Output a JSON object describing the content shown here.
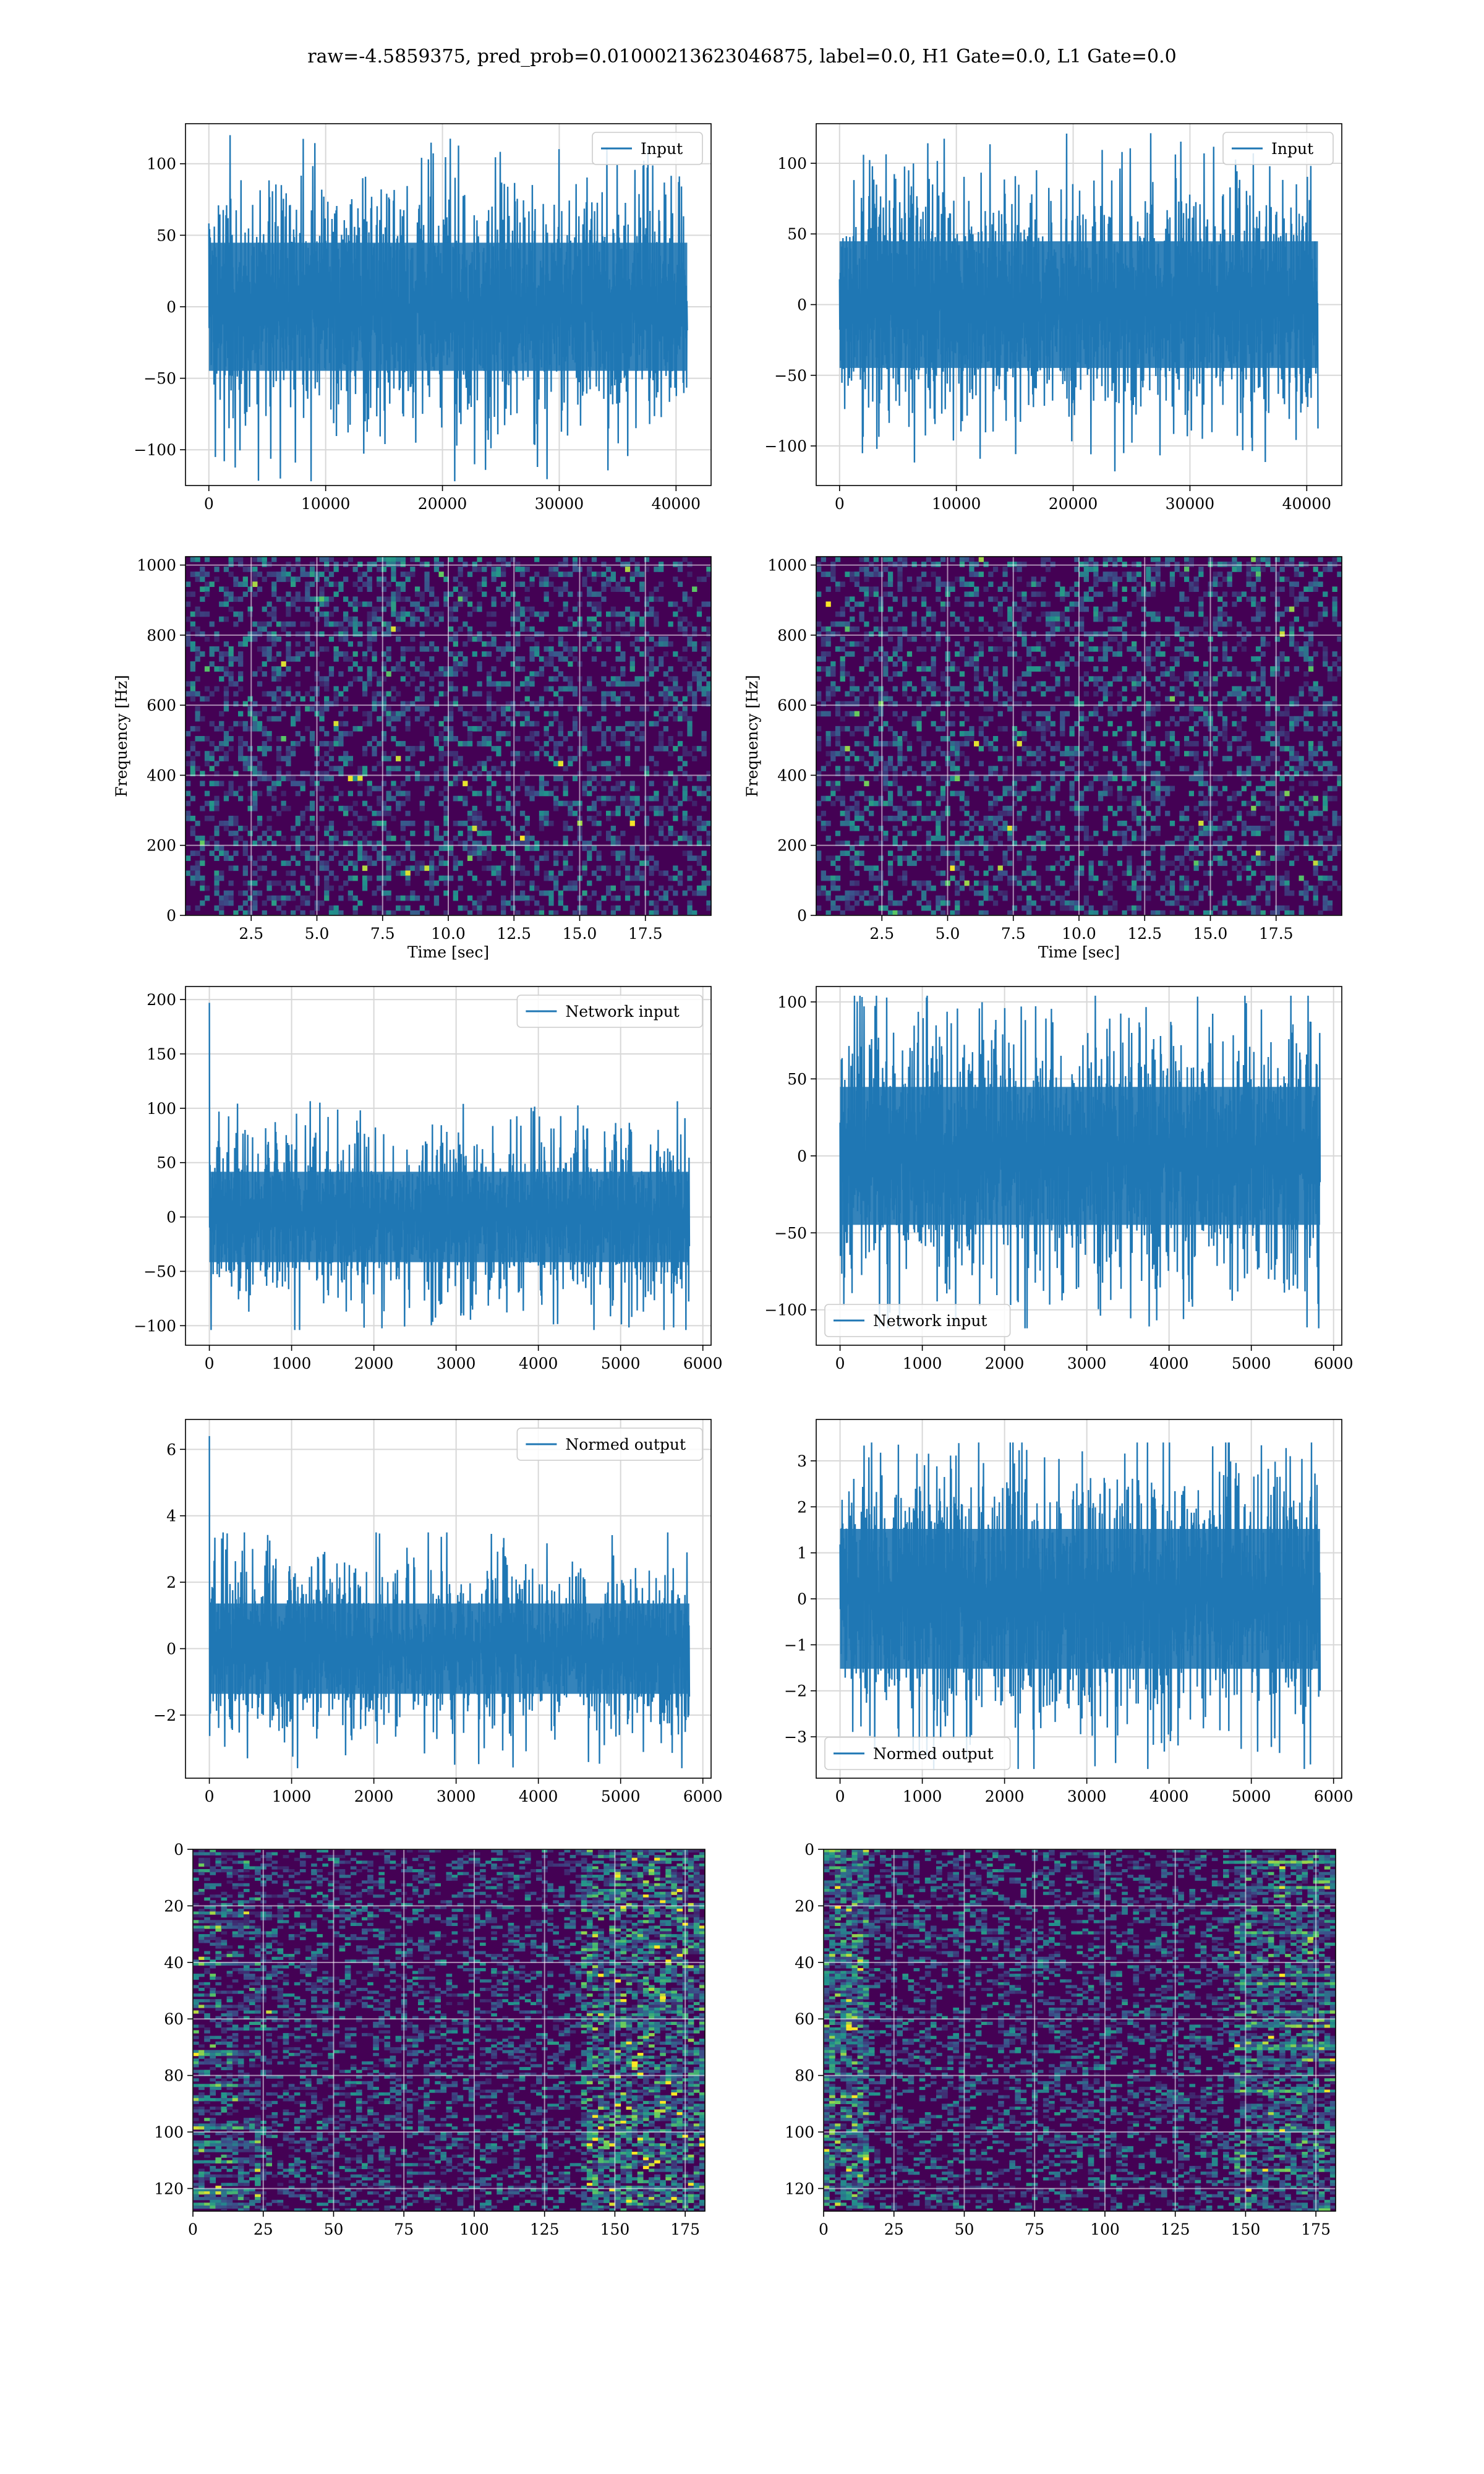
{
  "figure_title": "raw=-4.5859375, pred_prob=0.01000213623046875, label=0.0, H1 Gate=0.0, L1 Gate=0.0",
  "colors": {
    "series": "#1f77b4",
    "grid": "#d8d8d8",
    "viridis_low": "#440154",
    "viridis_mid": "#21918c",
    "viridis_high": "#fde725"
  },
  "chart_data": [
    {
      "id": "r1c1",
      "type": "line",
      "title": "",
      "xlabel": "",
      "ylabel": "",
      "xlim": [
        -2000,
        43000
      ],
      "ylim": [
        -125,
        128
      ],
      "xticks": [
        0,
        10000,
        20000,
        30000,
        40000
      ],
      "yticks": [
        -100,
        -50,
        0,
        50,
        100
      ],
      "series": [
        {
          "name": "Input",
          "color": "#1f77b4",
          "x_range": [
            0,
            40960
          ],
          "num_points": 40960,
          "center": 0,
          "std": 28,
          "max": 120,
          "min": -122
        }
      ],
      "legend": "upper-right",
      "grid": true
    },
    {
      "id": "r1c2",
      "type": "line",
      "title": "",
      "xlabel": "",
      "ylabel": "",
      "xlim": [
        -2000,
        43000
      ],
      "ylim": [
        -128,
        128
      ],
      "xticks": [
        0,
        10000,
        20000,
        30000,
        40000
      ],
      "yticks": [
        -100,
        -50,
        0,
        50,
        100
      ],
      "series": [
        {
          "name": "Input",
          "color": "#1f77b4",
          "x_range": [
            0,
            40960
          ],
          "num_points": 40960,
          "center": 0,
          "std": 28,
          "max": 123,
          "min": -118
        }
      ],
      "legend": "upper-right",
      "grid": true
    },
    {
      "id": "r2c1",
      "type": "heatmap",
      "title": "",
      "xlabel": "Time [sec]",
      "ylabel": "Frequency [Hz]",
      "xlim": [
        0,
        20
      ],
      "ylim": [
        0,
        1024
      ],
      "xticks": [
        2.5,
        5.0,
        7.5,
        10.0,
        12.5,
        15.0,
        17.5
      ],
      "xtick_labels": [
        "2.5",
        "5.0",
        "7.5",
        "10.0",
        "12.5",
        "15.0",
        "17.5"
      ],
      "yticks": [
        0,
        200,
        400,
        600,
        800,
        1000
      ],
      "colormap": "viridis",
      "grid": true
    },
    {
      "id": "r2c2",
      "type": "heatmap",
      "title": "",
      "xlabel": "Time [sec]",
      "ylabel": "Frequency [Hz]",
      "xlim": [
        0,
        20
      ],
      "ylim": [
        0,
        1024
      ],
      "xticks": [
        2.5,
        5.0,
        7.5,
        10.0,
        12.5,
        15.0,
        17.5
      ],
      "xtick_labels": [
        "2.5",
        "5.0",
        "7.5",
        "10.0",
        "12.5",
        "15.0",
        "17.5"
      ],
      "yticks": [
        0,
        200,
        400,
        600,
        800,
        1000
      ],
      "colormap": "viridis",
      "grid": true
    },
    {
      "id": "r3c1",
      "type": "line",
      "title": "",
      "xlabel": "",
      "ylabel": "",
      "xlim": [
        -290,
        6100
      ],
      "ylim": [
        -118,
        212
      ],
      "xticks": [
        0,
        1000,
        2000,
        3000,
        4000,
        5000,
        6000
      ],
      "yticks": [
        -100,
        -50,
        0,
        50,
        100,
        150,
        200
      ],
      "series": [
        {
          "name": "Network input",
          "color": "#1f77b4",
          "x_range": [
            0,
            5836
          ],
          "num_points": 5837,
          "center": 0,
          "std": 26,
          "max": 108,
          "min": -104,
          "spike_x": 0,
          "spike_y": 197
        }
      ],
      "legend": "upper-right",
      "grid": true
    },
    {
      "id": "r3c2",
      "type": "line",
      "title": "",
      "xlabel": "",
      "ylabel": "",
      "xlim": [
        -290,
        6100
      ],
      "ylim": [
        -123,
        110
      ],
      "xticks": [
        0,
        1000,
        2000,
        3000,
        4000,
        5000,
        6000
      ],
      "yticks": [
        -100,
        -50,
        0,
        50,
        100
      ],
      "series": [
        {
          "name": "Network input",
          "color": "#1f77b4",
          "x_range": [
            0,
            5836
          ],
          "num_points": 5837,
          "center": 0,
          "std": 28,
          "max": 104,
          "min": -112
        }
      ],
      "legend": "lower-left",
      "grid": true
    },
    {
      "id": "r4c1",
      "type": "line",
      "title": "",
      "xlabel": "",
      "ylabel": "",
      "xlim": [
        -290,
        6100
      ],
      "ylim": [
        -3.9,
        6.9
      ],
      "xticks": [
        0,
        1000,
        2000,
        3000,
        4000,
        5000,
        6000
      ],
      "yticks": [
        -2,
        0,
        2,
        4,
        6
      ],
      "series": [
        {
          "name": "Normed output",
          "color": "#1f77b4",
          "x_range": [
            0,
            5836
          ],
          "num_points": 5837,
          "center": 0,
          "std": 0.85,
          "max": 3.5,
          "min": -3.6,
          "spike_x": 0,
          "spike_y": 6.4
        }
      ],
      "legend": "upper-right",
      "grid": true
    },
    {
      "id": "r4c2",
      "type": "line",
      "title": "",
      "xlabel": "",
      "ylabel": "",
      "xlim": [
        -290,
        6100
      ],
      "ylim": [
        -3.9,
        3.9
      ],
      "xticks": [
        0,
        1000,
        2000,
        3000,
        4000,
        5000,
        6000
      ],
      "yticks": [
        -3,
        -2,
        -1,
        0,
        1,
        2,
        3
      ],
      "series": [
        {
          "name": "Normed output",
          "color": "#1f77b4",
          "x_range": [
            0,
            5836
          ],
          "num_points": 5837,
          "center": 0,
          "std": 0.95,
          "max": 3.4,
          "min": -3.7
        }
      ],
      "legend": "lower-left",
      "grid": true
    },
    {
      "id": "r5c1",
      "type": "heatmap",
      "title": "",
      "xlabel": "",
      "ylabel": "",
      "xlim": [
        0,
        182
      ],
      "ylim": [
        128,
        0
      ],
      "xticks": [
        0,
        25,
        50,
        75,
        100,
        125,
        150,
        175
      ],
      "yticks": [
        0,
        20,
        40,
        60,
        80,
        100,
        120
      ],
      "rows": 128,
      "cols": 182,
      "colormap": "viridis",
      "grid": true
    },
    {
      "id": "r5c2",
      "type": "heatmap",
      "title": "",
      "xlabel": "",
      "ylabel": "",
      "xlim": [
        0,
        182
      ],
      "ylim": [
        128,
        0
      ],
      "xticks": [
        0,
        25,
        50,
        75,
        100,
        125,
        150,
        175
      ],
      "yticks": [
        0,
        20,
        40,
        60,
        80,
        100,
        120
      ],
      "rows": 128,
      "cols": 182,
      "colormap": "viridis",
      "grid": true
    }
  ]
}
